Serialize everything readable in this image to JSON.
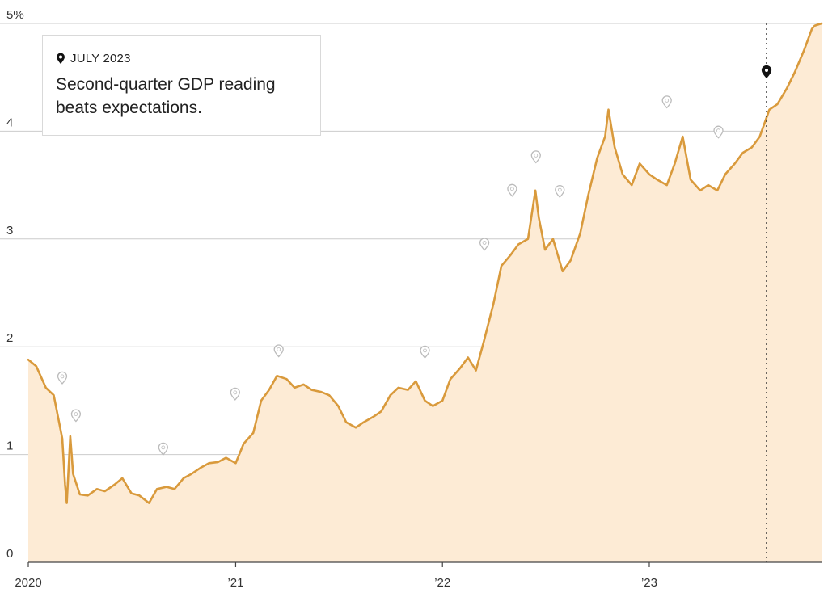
{
  "annotation": {
    "date": "JULY 2023",
    "text": "Second-quarter GDP reading beats expectations."
  },
  "colors": {
    "line": "#d99a3c",
    "fill": "#fdebd5",
    "grid": "#cccccc",
    "marker_inactive": "#bbbbbb",
    "marker_active": "#111111"
  },
  "chart_data": {
    "type": "area",
    "title": "",
    "xlabel": "",
    "ylabel": "",
    "xlim": [
      "2020-01-01",
      "2023-11-01"
    ],
    "ylim": [
      0,
      5
    ],
    "y_ticks": [
      {
        "value": 0,
        "label": "0"
      },
      {
        "value": 1,
        "label": "1"
      },
      {
        "value": 2,
        "label": "2"
      },
      {
        "value": 3,
        "label": "3"
      },
      {
        "value": 4,
        "label": "4"
      },
      {
        "value": 5,
        "label": "5%"
      }
    ],
    "x_ticks": [
      {
        "date": "2020-01-01",
        "label": "2020"
      },
      {
        "date": "2021-01-01",
        "label": "’21"
      },
      {
        "date": "2022-01-01",
        "label": "’22"
      },
      {
        "date": "2023-01-01",
        "label": "’23"
      }
    ],
    "grid": true,
    "series": [
      {
        "x": [
          "2020-01-01",
          "2020-01-15",
          "2020-02-01",
          "2020-02-15",
          "2020-03-01",
          "2020-03-06",
          "2020-03-09",
          "2020-03-15",
          "2020-03-20",
          "2020-04-01",
          "2020-04-15",
          "2020-05-01",
          "2020-05-15",
          "2020-06-01",
          "2020-06-15",
          "2020-07-01",
          "2020-07-15",
          "2020-08-01",
          "2020-08-15",
          "2020-09-01",
          "2020-09-15",
          "2020-10-01",
          "2020-10-15",
          "2020-11-01",
          "2020-11-15",
          "2020-12-01",
          "2020-12-15",
          "2021-01-01",
          "2021-01-15",
          "2021-02-01",
          "2021-02-15",
          "2021-03-01",
          "2021-03-15",
          "2021-04-01",
          "2021-04-15",
          "2021-05-01",
          "2021-05-15",
          "2021-06-01",
          "2021-06-15",
          "2021-07-01",
          "2021-07-15",
          "2021-08-01",
          "2021-08-15",
          "2021-09-01",
          "2021-09-15",
          "2021-10-01",
          "2021-10-15",
          "2021-11-01",
          "2021-11-15",
          "2021-12-01",
          "2021-12-15",
          "2022-01-01",
          "2022-01-15",
          "2022-02-01",
          "2022-02-15",
          "2022-03-01",
          "2022-03-15",
          "2022-04-01",
          "2022-04-15",
          "2022-05-01",
          "2022-05-15",
          "2022-06-01",
          "2022-06-14",
          "2022-06-20",
          "2022-07-01",
          "2022-07-15",
          "2022-08-01",
          "2022-08-15",
          "2022-09-01",
          "2022-09-15",
          "2022-10-01",
          "2022-10-15",
          "2022-10-21",
          "2022-11-01",
          "2022-11-15",
          "2022-12-01",
          "2022-12-15",
          "2023-01-01",
          "2023-01-15",
          "2023-02-01",
          "2023-02-15",
          "2023-03-01",
          "2023-03-15",
          "2023-04-01",
          "2023-04-15",
          "2023-05-01",
          "2023-05-15",
          "2023-06-01",
          "2023-06-15",
          "2023-07-01",
          "2023-07-15",
          "2023-08-01",
          "2023-08-15",
          "2023-09-01",
          "2023-09-15",
          "2023-10-01",
          "2023-10-15",
          "2023-10-20",
          "2023-11-01"
        ],
        "y": [
          1.88,
          1.82,
          1.62,
          1.55,
          1.15,
          0.72,
          0.55,
          1.17,
          0.82,
          0.63,
          0.62,
          0.68,
          0.66,
          0.72,
          0.78,
          0.64,
          0.62,
          0.55,
          0.68,
          0.7,
          0.68,
          0.78,
          0.82,
          0.88,
          0.92,
          0.93,
          0.97,
          0.92,
          1.1,
          1.2,
          1.5,
          1.6,
          1.73,
          1.7,
          1.62,
          1.65,
          1.6,
          1.58,
          1.55,
          1.45,
          1.3,
          1.25,
          1.3,
          1.35,
          1.4,
          1.55,
          1.62,
          1.6,
          1.68,
          1.5,
          1.45,
          1.5,
          1.7,
          1.8,
          1.9,
          1.78,
          2.05,
          2.4,
          2.75,
          2.85,
          2.95,
          3.0,
          3.45,
          3.2,
          2.9,
          3.0,
          2.7,
          2.8,
          3.05,
          3.4,
          3.75,
          3.95,
          4.2,
          3.85,
          3.6,
          3.5,
          3.7,
          3.6,
          3.55,
          3.5,
          3.7,
          3.95,
          3.55,
          3.45,
          3.5,
          3.45,
          3.6,
          3.7,
          3.8,
          3.85,
          3.95,
          4.2,
          4.25,
          4.4,
          4.55,
          4.75,
          4.95,
          4.98,
          5.0
        ]
      }
    ],
    "event_markers": [
      {
        "date": "2020-03-01",
        "value": 1.71
      },
      {
        "date": "2020-03-25",
        "value": 1.36
      },
      {
        "date": "2020-08-26",
        "value": 1.05
      },
      {
        "date": "2020-12-31",
        "value": 1.56
      },
      {
        "date": "2021-03-18",
        "value": 1.96
      },
      {
        "date": "2021-12-01",
        "value": 1.95
      },
      {
        "date": "2022-03-16",
        "value": 2.95
      },
      {
        "date": "2022-05-04",
        "value": 3.45
      },
      {
        "date": "2022-06-15",
        "value": 3.76
      },
      {
        "date": "2022-07-27",
        "value": 3.44
      },
      {
        "date": "2023-02-01",
        "value": 4.27
      },
      {
        "date": "2023-05-03",
        "value": 3.99
      },
      {
        "date": "2023-07-27",
        "value": 4.55,
        "active": true
      }
    ],
    "highlight_date": "2023-07-27"
  }
}
